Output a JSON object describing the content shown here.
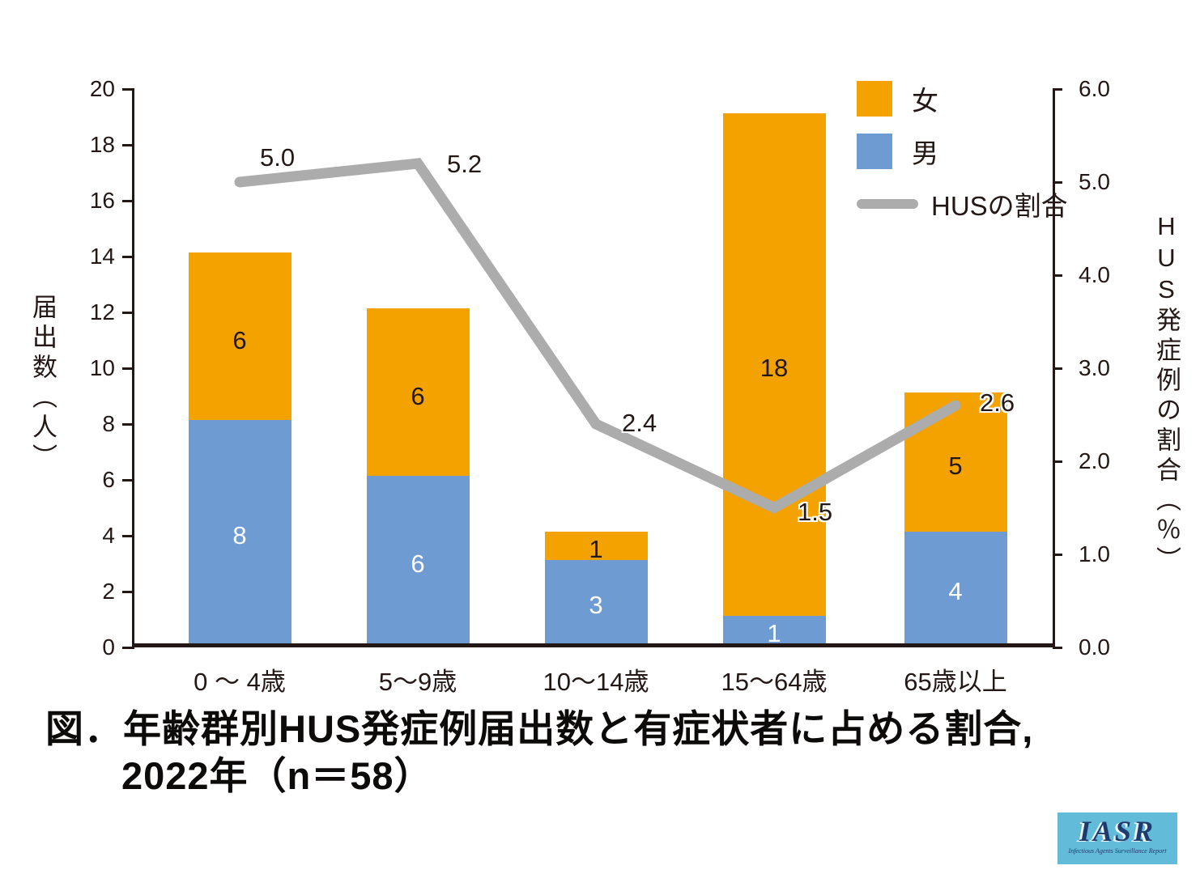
{
  "figure_title": {
    "line1": "図．年齢群別HUS発症例届出数と有症状者に占める割合,",
    "line2": "2022年（n＝58）"
  },
  "logo": {
    "name": "IASR",
    "tagline": "Infectious Agents Surveillance Report"
  },
  "chart_data": {
    "type": "bar",
    "subtype": "stacked-bars-with-line-overlay",
    "title": "図．年齢群別HUS発症例届出数と有症状者に占める割合, 2022年（n＝58）",
    "n_total": 58,
    "categories": [
      "0 〜 4歳",
      "5〜9歳",
      "10〜14歳",
      "15〜64歳",
      "65歳以上"
    ],
    "series": [
      {
        "name": "男",
        "color": "#6E9CD2",
        "label_color": "#ffffff",
        "values": [
          8,
          6,
          3,
          1,
          4
        ]
      },
      {
        "name": "女",
        "color": "#F3A200",
        "label_color": "#231815",
        "values": [
          6,
          6,
          1,
          18,
          5
        ]
      }
    ],
    "line_series": {
      "name": "HUSの割合",
      "color": "#ACACAC",
      "axis": "right",
      "values": [
        5.0,
        5.2,
        2.4,
        1.5,
        2.6
      ],
      "labels": [
        "5.0",
        "5.2",
        "2.4",
        "1.5",
        "2.6"
      ]
    },
    "left_axis": {
      "title": "届出数（人）",
      "range": [
        0,
        20
      ],
      "ticks": [
        "0",
        "2",
        "4",
        "6",
        "8",
        "10",
        "12",
        "14",
        "16",
        "18",
        "20"
      ]
    },
    "right_axis": {
      "title": "HUS発症例の割合（％）",
      "title_latin": "HUS",
      "title_cjk": "発症例の割合（％）",
      "range": [
        0.0,
        6.0
      ],
      "ticks": [
        "0.0",
        "1.0",
        "2.0",
        "3.0",
        "4.0",
        "5.0",
        "6.0"
      ]
    },
    "legend": {
      "position": "top-right",
      "items": [
        {
          "label": "女",
          "swatch": "square",
          "color": "#F3A200"
        },
        {
          "label": "男",
          "swatch": "square",
          "color": "#6E9CD2"
        },
        {
          "label": "HUSの割合",
          "swatch": "line",
          "color": "#ACACAC"
        }
      ]
    },
    "grid": false
  }
}
